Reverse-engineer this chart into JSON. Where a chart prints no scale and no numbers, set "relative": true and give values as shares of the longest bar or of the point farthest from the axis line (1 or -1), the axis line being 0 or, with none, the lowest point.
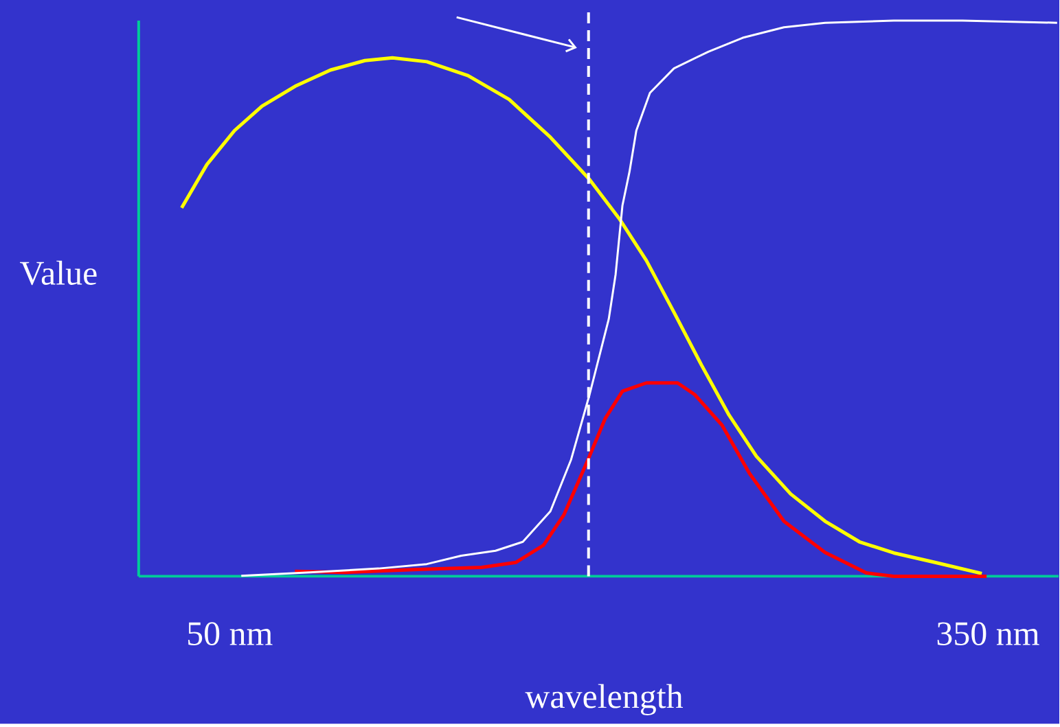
{
  "chart_data": {
    "type": "line",
    "xlabel": "wavelength",
    "ylabel": "Value",
    "relative": true,
    "xlim": [
      14,
      378
    ],
    "xticks": [
      {
        "value": 50,
        "label": "50 nm"
      },
      {
        "value": 350,
        "label": "350 nm"
      }
    ],
    "ref_lines": [
      {
        "axis": "x",
        "value": 192,
        "color": "#ffffff",
        "line_style": "dashed"
      }
    ],
    "series": [
      {
        "color": "#ffff00",
        "x": [
          31.0,
          41.0,
          51.9,
          62.8,
          76.4,
          89.9,
          103.5,
          114.4,
          128.0,
          144.3,
          160.6,
          176.9,
          192.4,
          204.1,
          214.9,
          225.8,
          236.7,
          247.6,
          258.4,
          272.0,
          285.6,
          299.2,
          312.8,
          329.1,
          347.6
        ],
        "values": [
          0.663,
          0.741,
          0.802,
          0.846,
          0.883,
          0.911,
          0.928,
          0.933,
          0.926,
          0.901,
          0.858,
          0.79,
          0.714,
          0.644,
          0.568,
          0.475,
          0.38,
          0.29,
          0.216,
          0.148,
          0.099,
          0.062,
          0.042,
          0.025,
          0.005
        ]
      },
      {
        "color": "#ffffff",
        "x": [
          54.6,
          81.8,
          109.0,
          128.0,
          141.6,
          155.2,
          166.0,
          176.9,
          185.1,
          192.4,
          200.0,
          202.7,
          205.4,
          208.2,
          210.9,
          216.3,
          225.8,
          239.4,
          253.0,
          269.3,
          285.6,
          312.8,
          339.9,
          377.4
        ],
        "values": [
          0.001,
          0.007,
          0.014,
          0.022,
          0.037,
          0.046,
          0.062,
          0.117,
          0.21,
          0.327,
          0.463,
          0.543,
          0.667,
          0.728,
          0.802,
          0.87,
          0.914,
          0.944,
          0.969,
          0.988,
          0.996,
          1,
          1,
          0.996
        ]
      },
      {
        "color": "#ff0000",
        "x": [
          75.8,
          95.4,
          122.6,
          149.7,
          163.3,
          174.2,
          182.3,
          191.8,
          198.6,
          205.4,
          214.9,
          227.2,
          234.0,
          244.8,
          255.7,
          269.3,
          285.6,
          301.9,
          312.8,
          349.5
        ],
        "values": [
          0.009,
          0.007,
          0.012,
          0.016,
          0.025,
          0.056,
          0.111,
          0.21,
          0.284,
          0.333,
          0.348,
          0.348,
          0.327,
          0.272,
          0.185,
          0.099,
          0.043,
          0.006,
          0,
          0
        ]
      }
    ]
  }
}
